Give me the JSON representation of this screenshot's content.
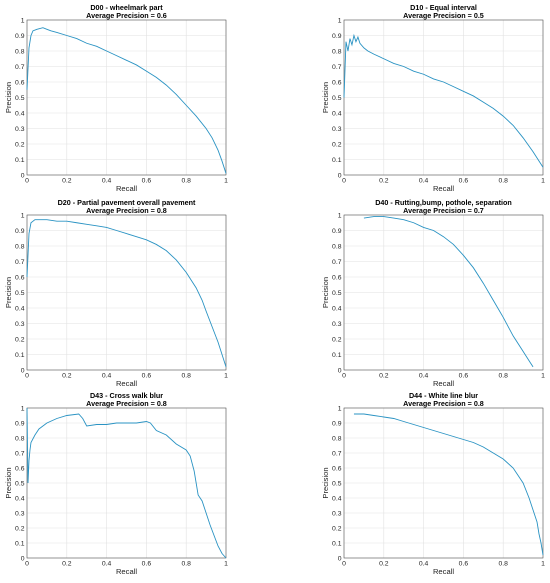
{
  "chart_data": [
    {
      "type": "line",
      "title": "D00 - wheelmark part",
      "subtitle": "Average Precision = 0.6",
      "xlabel": "Recall",
      "ylabel": "Precision",
      "xlim": [
        0,
        1
      ],
      "ylim": [
        0,
        1
      ],
      "xticks": [
        "0",
        "0.2",
        "0.4",
        "0.6",
        "0.8",
        "1"
      ],
      "yticks": [
        "0",
        "0.1",
        "0.2",
        "0.3",
        "0.4",
        "0.5",
        "0.6",
        "0.7",
        "0.8",
        "0.9",
        "1"
      ],
      "grid": true,
      "color": "#2a93c3",
      "x": [
        0,
        0.01,
        0.02,
        0.03,
        0.05,
        0.08,
        0.1,
        0.12,
        0.15,
        0.2,
        0.25,
        0.3,
        0.35,
        0.4,
        0.45,
        0.5,
        0.55,
        0.6,
        0.65,
        0.7,
        0.75,
        0.8,
        0.85,
        0.9,
        0.93,
        0.96,
        0.98,
        1.0
      ],
      "y": [
        0.55,
        0.82,
        0.9,
        0.93,
        0.94,
        0.95,
        0.94,
        0.93,
        0.92,
        0.9,
        0.88,
        0.85,
        0.83,
        0.8,
        0.77,
        0.74,
        0.71,
        0.67,
        0.63,
        0.58,
        0.52,
        0.45,
        0.38,
        0.3,
        0.24,
        0.16,
        0.09,
        0.01
      ]
    },
    {
      "type": "line",
      "title": "D10 - Equal interval",
      "subtitle": "Average Precision = 0.5",
      "xlabel": "Recall",
      "ylabel": "Precision",
      "xlim": [
        0,
        1
      ],
      "ylim": [
        0,
        1
      ],
      "xticks": [
        "0",
        "0.2",
        "0.4",
        "0.6",
        "0.8",
        "1"
      ],
      "yticks": [
        "0",
        "0.1",
        "0.2",
        "0.3",
        "0.4",
        "0.5",
        "0.6",
        "0.7",
        "0.8",
        "0.9",
        "1"
      ],
      "grid": true,
      "color": "#2a93c3",
      "x": [
        0,
        0.01,
        0.02,
        0.03,
        0.04,
        0.05,
        0.06,
        0.07,
        0.08,
        0.1,
        0.12,
        0.15,
        0.2,
        0.25,
        0.3,
        0.35,
        0.4,
        0.45,
        0.5,
        0.55,
        0.6,
        0.65,
        0.7,
        0.75,
        0.8,
        0.85,
        0.9,
        0.95,
        1.0
      ],
      "y": [
        0.5,
        0.86,
        0.8,
        0.88,
        0.84,
        0.9,
        0.86,
        0.89,
        0.85,
        0.82,
        0.8,
        0.78,
        0.75,
        0.72,
        0.7,
        0.67,
        0.65,
        0.62,
        0.6,
        0.57,
        0.54,
        0.51,
        0.47,
        0.43,
        0.38,
        0.32,
        0.24,
        0.15,
        0.05
      ]
    },
    {
      "type": "line",
      "title": "D20 - Partial pavement overall pavement",
      "subtitle": "Average Precision = 0.8",
      "xlabel": "Recall",
      "ylabel": "Precision",
      "xlim": [
        0,
        1
      ],
      "ylim": [
        0,
        1
      ],
      "xticks": [
        "0",
        "0.2",
        "0.4",
        "0.6",
        "0.8",
        "1"
      ],
      "yticks": [
        "0",
        "0.1",
        "0.2",
        "0.3",
        "0.4",
        "0.5",
        "0.6",
        "0.7",
        "0.8",
        "0.9",
        "1"
      ],
      "grid": true,
      "color": "#2a93c3",
      "x": [
        0,
        0.01,
        0.02,
        0.04,
        0.06,
        0.1,
        0.15,
        0.2,
        0.25,
        0.3,
        0.35,
        0.4,
        0.45,
        0.5,
        0.55,
        0.6,
        0.65,
        0.7,
        0.75,
        0.8,
        0.85,
        0.88,
        0.9,
        0.93,
        0.96,
        0.98,
        1.0
      ],
      "y": [
        0.6,
        0.88,
        0.95,
        0.97,
        0.97,
        0.97,
        0.96,
        0.96,
        0.95,
        0.94,
        0.93,
        0.92,
        0.9,
        0.88,
        0.86,
        0.84,
        0.81,
        0.77,
        0.71,
        0.63,
        0.53,
        0.45,
        0.38,
        0.28,
        0.18,
        0.1,
        0.02
      ]
    },
    {
      "type": "line",
      "title": "D40 - Rutting,bump, pothole, separation",
      "subtitle": "Average Precision = 0.7",
      "xlabel": "Recall",
      "ylabel": "Precision",
      "xlim": [
        0,
        1
      ],
      "ylim": [
        0,
        1
      ],
      "xticks": [
        "0",
        "0.2",
        "0.4",
        "0.6",
        "0.8",
        "1"
      ],
      "yticks": [
        "0",
        "0.1",
        "0.2",
        "0.3",
        "0.4",
        "0.5",
        "0.6",
        "0.7",
        "0.8",
        "0.9",
        "1"
      ],
      "grid": true,
      "color": "#2a93c3",
      "x": [
        0.1,
        0.15,
        0.2,
        0.25,
        0.3,
        0.35,
        0.4,
        0.45,
        0.5,
        0.55,
        0.6,
        0.65,
        0.7,
        0.75,
        0.8,
        0.85,
        0.9,
        0.93,
        0.95
      ],
      "y": [
        0.98,
        0.99,
        0.99,
        0.98,
        0.97,
        0.95,
        0.92,
        0.9,
        0.86,
        0.81,
        0.74,
        0.66,
        0.56,
        0.45,
        0.34,
        0.22,
        0.12,
        0.06,
        0.02
      ]
    },
    {
      "type": "line",
      "title": "D43 - Cross walk blur",
      "subtitle": "Average Precision = 0.8",
      "xlabel": "Recall",
      "ylabel": "Precision",
      "xlim": [
        0,
        1
      ],
      "ylim": [
        0,
        1
      ],
      "xticks": [
        "0",
        "0.2",
        "0.4",
        "0.6",
        "0.8",
        "1"
      ],
      "yticks": [
        "0",
        "0.1",
        "0.2",
        "0.3",
        "0.4",
        "0.5",
        "0.6",
        "0.7",
        "0.8",
        "0.9",
        "1"
      ],
      "grid": true,
      "color": "#2a93c3",
      "x": [
        0,
        0.005,
        0.01,
        0.015,
        0.02,
        0.04,
        0.06,
        0.1,
        0.15,
        0.2,
        0.26,
        0.28,
        0.3,
        0.35,
        0.4,
        0.45,
        0.5,
        0.55,
        0.6,
        0.62,
        0.65,
        0.7,
        0.75,
        0.8,
        0.82,
        0.84,
        0.86,
        0.88,
        0.9,
        0.92,
        0.94,
        0.96,
        0.98,
        1.0
      ],
      "y": [
        1.0,
        0.5,
        0.65,
        0.72,
        0.77,
        0.82,
        0.86,
        0.9,
        0.93,
        0.95,
        0.96,
        0.93,
        0.88,
        0.89,
        0.89,
        0.9,
        0.9,
        0.9,
        0.91,
        0.9,
        0.85,
        0.82,
        0.76,
        0.72,
        0.68,
        0.58,
        0.42,
        0.38,
        0.3,
        0.22,
        0.15,
        0.08,
        0.03,
        0.0
      ]
    },
    {
      "type": "line",
      "title": "D44 - White line blur",
      "subtitle": "Average Precision = 0.8",
      "xlabel": "Recall",
      "ylabel": "Precision",
      "xlim": [
        0,
        1
      ],
      "ylim": [
        0,
        1
      ],
      "xticks": [
        "0",
        "0.2",
        "0.4",
        "0.6",
        "0.8",
        "1"
      ],
      "yticks": [
        "0",
        "0.1",
        "0.2",
        "0.3",
        "0.4",
        "0.5",
        "0.6",
        "0.7",
        "0.8",
        "0.9",
        "1"
      ],
      "grid": true,
      "color": "#2a93c3",
      "x": [
        0.05,
        0.1,
        0.15,
        0.2,
        0.25,
        0.3,
        0.35,
        0.4,
        0.45,
        0.5,
        0.55,
        0.6,
        0.65,
        0.7,
        0.75,
        0.8,
        0.85,
        0.9,
        0.93,
        0.95,
        0.97,
        0.98,
        0.99,
        1.0
      ],
      "y": [
        0.96,
        0.96,
        0.95,
        0.94,
        0.93,
        0.91,
        0.89,
        0.87,
        0.85,
        0.83,
        0.81,
        0.79,
        0.77,
        0.74,
        0.7,
        0.66,
        0.6,
        0.5,
        0.4,
        0.32,
        0.24,
        0.16,
        0.1,
        0.02
      ]
    }
  ]
}
